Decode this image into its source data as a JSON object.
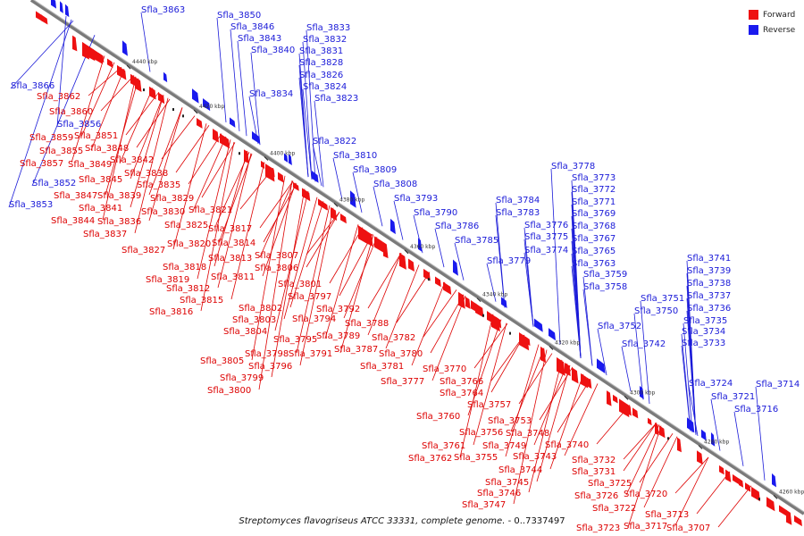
{
  "colors": {
    "forward": "#ee1111",
    "reverse": "#1a1aee",
    "axis": "#808080",
    "label_forward": "#dd0000",
    "label_reverse": "#1a1ad8"
  },
  "legend": {
    "forward_label": "Forward",
    "reverse_label": "Reverse"
  },
  "caption": {
    "title": "Streptomyces flavogriseus ATCC 33331, complete genome.",
    "range": " - 0..7337497"
  },
  "scale_labels": [
    "4440 kbp",
    "4420 kbp",
    "4400 kbp",
    "4380 kbp",
    "4360 kbp",
    "4340 kbp",
    "4320 kbp",
    "4300 kbp",
    "4280 kbp",
    "4260 kbp"
  ],
  "genes_reverse": [
    "Sfla_3863",
    "Sfla_3850",
    "Sfla_3846",
    "Sfla_3843",
    "Sfla_3840",
    "Sfla_3833",
    "Sfla_3832",
    "Sfla_3831",
    "Sfla_3828",
    "Sfla_3826",
    "Sfla_3824",
    "Sfla_3834",
    "Sfla_3823",
    "Sfla_3866",
    "Sfla_3856",
    "Sfla_3852",
    "Sfla_3853",
    "Sfla_3822",
    "Sfla_3810",
    "Sfla_3809",
    "Sfla_3808",
    "Sfla_3793",
    "Sfla_3790",
    "Sfla_3786",
    "Sfla_3785",
    "Sfla_3784",
    "Sfla_3783",
    "Sfla_3778",
    "Sfla_3773",
    "Sfla_3772",
    "Sfla_3771",
    "Sfla_3769",
    "Sfla_3776",
    "Sfla_3768",
    "Sfla_3775",
    "Sfla_3767",
    "Sfla_3774",
    "Sfla_3765",
    "Sfla_3779",
    "Sfla_3763",
    "Sfla_3759",
    "Sfla_3758",
    "Sfla_3751",
    "Sfla_3750",
    "Sfla_3752",
    "Sfla_3742",
    "Sfla_3741",
    "Sfla_3739",
    "Sfla_3738",
    "Sfla_3737",
    "Sfla_3736",
    "Sfla_3735",
    "Sfla_3734",
    "Sfla_3733",
    "Sfla_3724",
    "Sfla_3721",
    "Sfla_3714",
    "Sfla_3716"
  ],
  "genes_forward": [
    "Sfla_3862",
    "Sfla_3860",
    "Sfla_3859",
    "Sfla_3851",
    "Sfla_3855",
    "Sfla_3848",
    "Sfla_3857",
    "Sfla_3849",
    "Sfla_3842",
    "Sfla_3845",
    "Sfla_3838",
    "Sfla_3847",
    "Sfla_3839",
    "Sfla_3835",
    "Sfla_3841",
    "Sfla_3829",
    "Sfla_3844",
    "Sfla_3836",
    "Sfla_3830",
    "Sfla_3821",
    "Sfla_3837",
    "Sfla_3825",
    "Sfla_3817",
    "Sfla_3827",
    "Sfla_3820",
    "Sfla_3814",
    "Sfla_3807",
    "Sfla_3813",
    "Sfla_3818",
    "Sfla_3806",
    "Sfla_3811",
    "Sfla_3819",
    "Sfla_3801",
    "Sfla_3812",
    "Sfla_3815",
    "Sfla_3797",
    "Sfla_3802",
    "Sfla_3816",
    "Sfla_3792",
    "Sfla_3794",
    "Sfla_3803",
    "Sfla_3788",
    "Sfla_3804",
    "Sfla_3795",
    "Sfla_3789",
    "Sfla_3782",
    "Sfla_3798",
    "Sfla_3791",
    "Sfla_3787",
    "Sfla_3780",
    "Sfla_3805",
    "Sfla_3796",
    "Sfla_3781",
    "Sfla_3770",
    "Sfla_3799",
    "Sfla_3777",
    "Sfla_3766",
    "Sfla_3800",
    "Sfla_3764",
    "Sfla_3757",
    "Sfla_3760",
    "Sfla_3753",
    "Sfla_3756",
    "Sfla_3748",
    "Sfla_3761",
    "Sfla_3749",
    "Sfla_3740",
    "Sfla_3762",
    "Sfla_3755",
    "Sfla_3743",
    "Sfla_3744",
    "Sfla_3732",
    "Sfla_3731",
    "Sfla_3745",
    "Sfla_3725",
    "Sfla_3746",
    "Sfla_3726",
    "Sfla_3720",
    "Sfla_3747",
    "Sfla_3722",
    "Sfla_3713",
    "Sfla_3723",
    "Sfla_3717",
    "Sfla_3707"
  ]
}
